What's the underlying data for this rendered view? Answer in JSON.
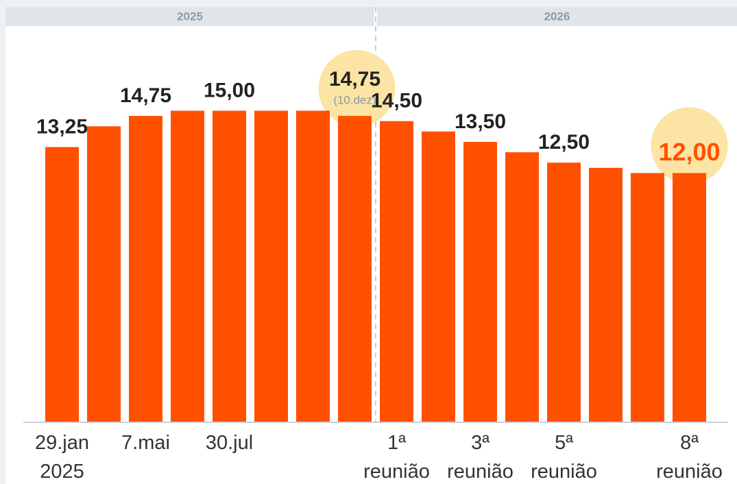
{
  "chart_data": {
    "type": "bar",
    "groups": [
      "2025",
      "2026"
    ],
    "categories": [
      [
        "29.jan",
        "2025"
      ],
      null,
      [
        "7.mai"
      ],
      null,
      [
        "30.jul"
      ],
      null,
      null,
      null,
      [
        "1ª",
        "reunião"
      ],
      null,
      [
        "3ª",
        "reunião"
      ],
      null,
      [
        "5ª",
        "reunião"
      ],
      null,
      null,
      [
        "8ª",
        "reunião"
      ]
    ],
    "values": [
      13.25,
      14.25,
      14.75,
      15,
      15,
      15,
      15,
      14.75,
      14.5,
      14,
      13.5,
      13,
      12.5,
      12.25,
      12,
      12
    ],
    "value_labels": [
      "13,25",
      null,
      "14,75",
      null,
      "15,00",
      null,
      null,
      "14,75",
      "14,50",
      null,
      "13,50",
      null,
      "12,50",
      null,
      null,
      "12,00"
    ],
    "value_notes": [
      null,
      null,
      null,
      null,
      null,
      null,
      null,
      "(10.dez)",
      null,
      null,
      null,
      null,
      null,
      null,
      null,
      null
    ],
    "highlight": [
      false,
      false,
      false,
      false,
      false,
      false,
      false,
      true,
      false,
      false,
      false,
      false,
      false,
      false,
      false,
      true
    ],
    "color": "#ff5000",
    "ylim": [
      0,
      20
    ]
  }
}
